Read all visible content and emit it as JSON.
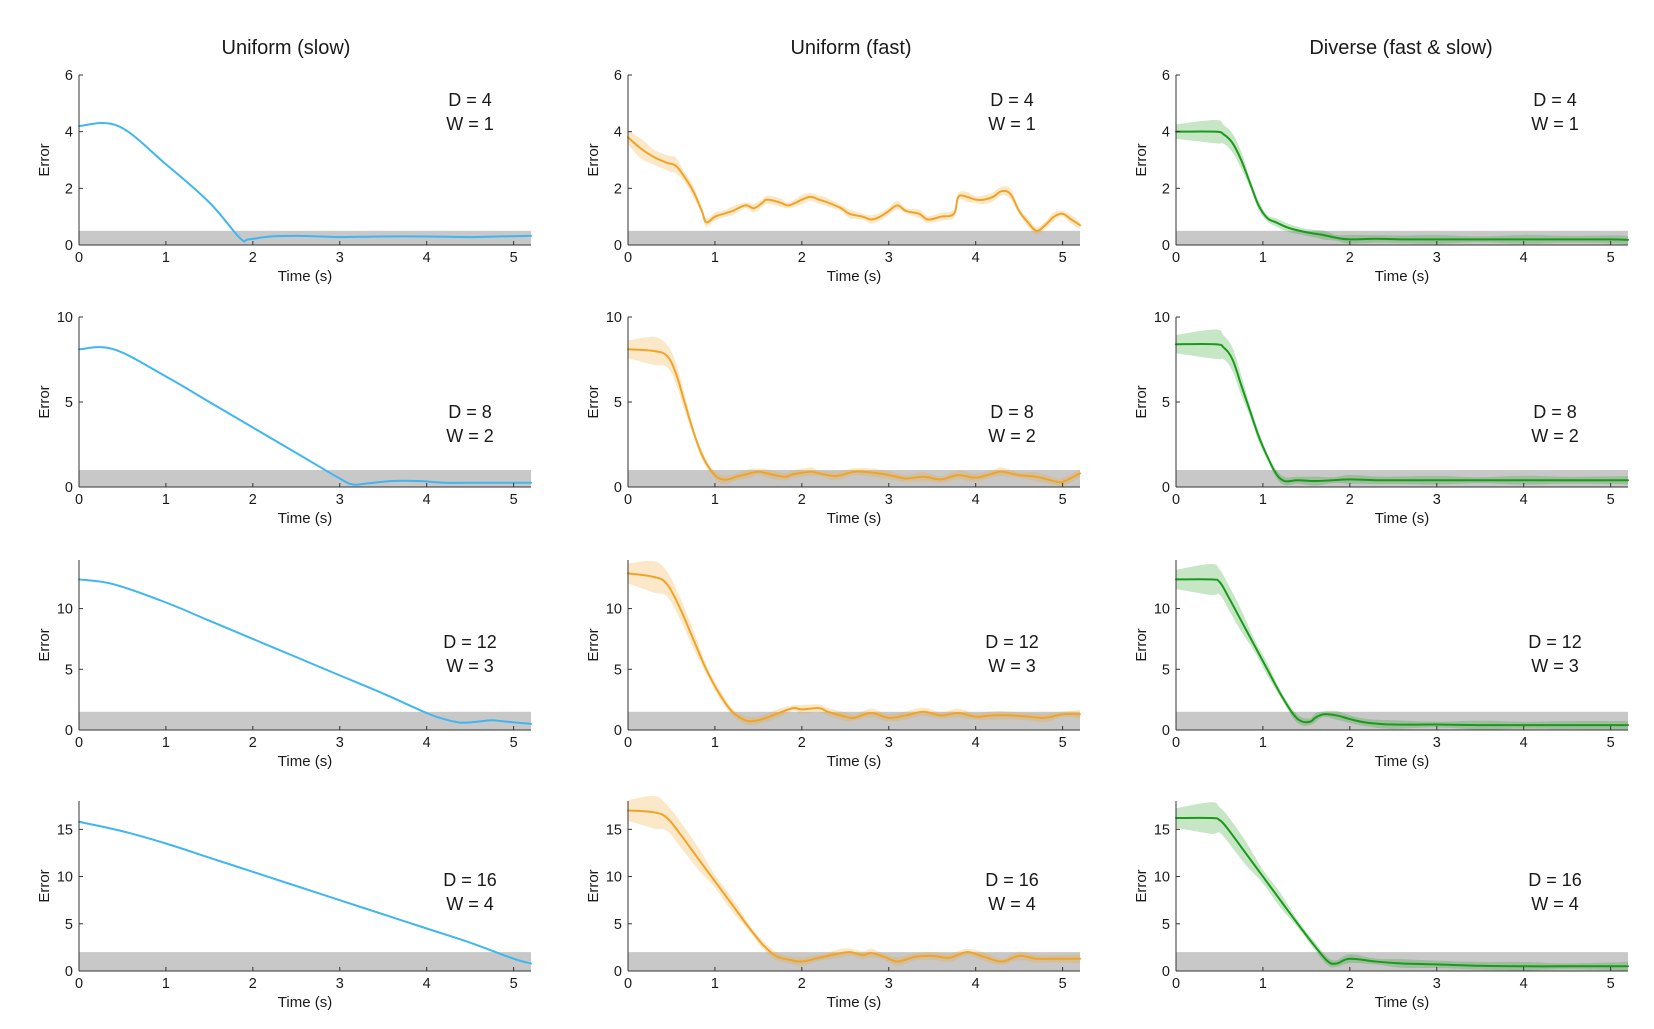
{
  "figure": {
    "column_titles": [
      "Uniform (slow)",
      "Uniform (fast)",
      "Diverse (fast & slow)"
    ],
    "row_annotations": [
      {
        "d": "D = 4",
        "w": "W = 1"
      },
      {
        "d": "D = 8",
        "w": "W = 2"
      },
      {
        "d": "D = 12",
        "w": "W = 3"
      },
      {
        "d": "D = 16",
        "w": "W = 4"
      }
    ],
    "colors": {
      "slow": "#3fb6f0",
      "fast": "#f0a427",
      "diverse": "#1a9a1a",
      "band": "#c8c8c8",
      "axis": "#333333"
    }
  },
  "chart_data": [
    {
      "type": "line",
      "panel": "r1c1",
      "title": "Uniform (slow)",
      "xlabel": "Time (s)",
      "ylabel": "Error",
      "xlim": [
        0,
        5.2
      ],
      "ylim": [
        0,
        6
      ],
      "xticks": [
        0,
        1,
        2,
        3,
        4,
        5
      ],
      "yticks": [
        0,
        2,
        4,
        6
      ],
      "target_band": [
        0,
        0.5
      ],
      "annotation": [
        "D = 4",
        "W = 1"
      ],
      "shaded": false,
      "series": [
        {
          "name": "Uniform (slow)",
          "x": [
            0,
            0.45,
            1.0,
            1.5,
            1.85,
            1.95,
            2.2,
            2.5,
            2.8,
            3.0,
            3.5,
            4.0,
            4.5,
            4.8,
            5.2
          ],
          "y": [
            4.2,
            4.2,
            2.85,
            1.5,
            0.25,
            0.2,
            0.3,
            0.32,
            0.3,
            0.28,
            0.3,
            0.3,
            0.28,
            0.3,
            0.32
          ]
        }
      ]
    },
    {
      "type": "line",
      "panel": "r1c2",
      "title": "Uniform (fast)",
      "xlabel": "Time (s)",
      "ylabel": "Error",
      "xlim": [
        0,
        5.2
      ],
      "ylim": [
        0,
        6
      ],
      "xticks": [
        0,
        1,
        2,
        3,
        4,
        5
      ],
      "yticks": [
        0,
        2,
        4,
        6
      ],
      "target_band": [
        0,
        0.5
      ],
      "annotation": [
        "D = 4",
        "W = 1"
      ],
      "shaded": true,
      "series": [
        {
          "name": "Uniform (fast)",
          "x": [
            0,
            0.15,
            0.3,
            0.45,
            0.55,
            0.65,
            0.75,
            0.85,
            0.9,
            1.0,
            1.1,
            1.2,
            1.35,
            1.45,
            1.55,
            1.6,
            1.75,
            1.85,
            2.0,
            2.1,
            2.2,
            2.3,
            2.45,
            2.55,
            2.7,
            2.8,
            2.9,
            3.0,
            3.1,
            3.2,
            3.35,
            3.45,
            3.6,
            3.75,
            3.8,
            3.9,
            4.0,
            4.1,
            4.2,
            4.3,
            4.4,
            4.5,
            4.6,
            4.7,
            4.8,
            4.9,
            5.0,
            5.1,
            5.2
          ],
          "y": [
            3.8,
            3.4,
            3.1,
            2.9,
            2.8,
            2.4,
            1.9,
            1.2,
            0.8,
            1.0,
            1.1,
            1.2,
            1.4,
            1.3,
            1.5,
            1.6,
            1.5,
            1.4,
            1.6,
            1.7,
            1.6,
            1.5,
            1.3,
            1.1,
            1.0,
            0.9,
            1.0,
            1.2,
            1.4,
            1.2,
            1.1,
            0.9,
            1.0,
            1.1,
            1.7,
            1.7,
            1.6,
            1.6,
            1.7,
            1.9,
            1.8,
            1.2,
            0.8,
            0.5,
            0.7,
            1.0,
            1.1,
            0.9,
            0.7
          ]
        }
      ]
    },
    {
      "type": "line",
      "panel": "r1c3",
      "title": "Diverse (fast & slow)",
      "xlabel": "Time (s)",
      "ylabel": "Error",
      "xlim": [
        0,
        5.2
      ],
      "ylim": [
        0,
        6
      ],
      "xticks": [
        0,
        1,
        2,
        3,
        4,
        5
      ],
      "yticks": [
        0,
        2,
        4,
        6
      ],
      "target_band": [
        0,
        0.5
      ],
      "annotation": [
        "D = 4",
        "W = 1"
      ],
      "shaded": true,
      "series": [
        {
          "name": "Diverse",
          "x": [
            0,
            0.45,
            0.55,
            0.65,
            0.75,
            0.85,
            0.95,
            1.05,
            1.15,
            1.3,
            1.5,
            1.7,
            1.85,
            2.0,
            2.3,
            2.6,
            3.0,
            3.5,
            4.0,
            4.5,
            5.0,
            5.2
          ],
          "y": [
            4.0,
            4.0,
            3.9,
            3.6,
            3.0,
            2.2,
            1.4,
            0.95,
            0.8,
            0.6,
            0.45,
            0.35,
            0.25,
            0.2,
            0.22,
            0.2,
            0.2,
            0.2,
            0.2,
            0.2,
            0.2,
            0.18
          ]
        }
      ]
    },
    {
      "type": "line",
      "panel": "r2c1",
      "title": "Uniform (slow)",
      "xlabel": "Time (s)",
      "ylabel": "Error",
      "xlim": [
        0,
        5.2
      ],
      "ylim": [
        0,
        10
      ],
      "xticks": [
        0,
        1,
        2,
        3,
        4,
        5
      ],
      "yticks": [
        0,
        5,
        10
      ],
      "target_band": [
        0,
        1
      ],
      "annotation": [
        "D = 8",
        "W = 2"
      ],
      "shaded": false,
      "series": [
        {
          "name": "Uniform (slow)",
          "x": [
            0,
            0.4,
            1.0,
            1.5,
            2.0,
            2.5,
            3.0,
            3.15,
            3.3,
            3.6,
            3.9,
            4.2,
            4.5,
            5.2
          ],
          "y": [
            8.1,
            8.1,
            6.5,
            5.0,
            3.5,
            2.0,
            0.5,
            0.15,
            0.2,
            0.35,
            0.35,
            0.25,
            0.25,
            0.25
          ]
        }
      ]
    },
    {
      "type": "line",
      "panel": "r2c2",
      "title": "Uniform (fast)",
      "xlabel": "Time (s)",
      "ylabel": "Error",
      "xlim": [
        0,
        5.2
      ],
      "ylim": [
        0,
        10
      ],
      "xticks": [
        0,
        1,
        2,
        3,
        4,
        5
      ],
      "yticks": [
        0,
        5,
        10
      ],
      "target_band": [
        0,
        1
      ],
      "annotation": [
        "D = 8",
        "W = 2"
      ],
      "shaded": true,
      "series": [
        {
          "name": "Uniform (fast)",
          "x": [
            0,
            0.3,
            0.45,
            0.55,
            0.65,
            0.75,
            0.85,
            0.95,
            1.05,
            1.15,
            1.25,
            1.4,
            1.5,
            1.6,
            1.8,
            1.9,
            2.1,
            2.2,
            2.4,
            2.6,
            2.8,
            3.0,
            3.2,
            3.4,
            3.6,
            3.8,
            4.0,
            4.2,
            4.3,
            4.5,
            4.7,
            4.9,
            5.0,
            5.2
          ],
          "y": [
            8.1,
            8.0,
            7.7,
            6.7,
            5.0,
            3.3,
            1.9,
            1.0,
            0.5,
            0.45,
            0.6,
            0.8,
            0.9,
            0.8,
            0.6,
            0.75,
            0.9,
            0.8,
            0.65,
            0.9,
            0.85,
            0.7,
            0.5,
            0.6,
            0.45,
            0.7,
            0.55,
            0.8,
            0.9,
            0.7,
            0.6,
            0.35,
            0.3,
            0.8
          ]
        }
      ]
    },
    {
      "type": "line",
      "panel": "r2c3",
      "title": "Diverse (fast & slow)",
      "xlabel": "Time (s)",
      "ylabel": "Error",
      "xlim": [
        0,
        5.2
      ],
      "ylim": [
        0,
        10
      ],
      "xticks": [
        0,
        1,
        2,
        3,
        4,
        5
      ],
      "yticks": [
        0,
        5,
        10
      ],
      "target_band": [
        0,
        1
      ],
      "annotation": [
        "D = 8",
        "W = 2"
      ],
      "shaded": true,
      "series": [
        {
          "name": "Diverse",
          "x": [
            0,
            0.45,
            0.55,
            0.65,
            0.75,
            0.85,
            0.95,
            1.05,
            1.15,
            1.25,
            1.4,
            1.6,
            1.8,
            2.0,
            2.3,
            2.6,
            3.0,
            3.5,
            4.0,
            4.5,
            5.2
          ],
          "y": [
            8.4,
            8.4,
            8.2,
            7.5,
            6.0,
            4.5,
            3.0,
            1.8,
            0.8,
            0.35,
            0.4,
            0.35,
            0.4,
            0.45,
            0.4,
            0.4,
            0.4,
            0.4,
            0.4,
            0.4,
            0.4
          ]
        }
      ]
    },
    {
      "type": "line",
      "panel": "r3c1",
      "title": "Uniform (slow)",
      "xlabel": "Time (s)",
      "ylabel": "Error",
      "xlim": [
        0,
        5.2
      ],
      "ylim": [
        0,
        14
      ],
      "xticks": [
        0,
        1,
        2,
        3,
        4,
        5
      ],
      "yticks": [
        0,
        5,
        10
      ],
      "target_band": [
        0,
        1.5
      ],
      "annotation": [
        "D = 12",
        "W = 3"
      ],
      "shaded": false,
      "series": [
        {
          "name": "Uniform (slow)",
          "x": [
            0,
            0.4,
            1.0,
            1.5,
            2.0,
            2.5,
            3.0,
            3.5,
            4.0,
            4.2,
            4.4,
            4.6,
            4.75,
            4.9,
            5.2
          ],
          "y": [
            12.4,
            12.0,
            10.5,
            9.0,
            7.5,
            6.0,
            4.5,
            3.0,
            1.4,
            0.9,
            0.6,
            0.7,
            0.8,
            0.7,
            0.5
          ]
        }
      ]
    },
    {
      "type": "line",
      "panel": "r3c2",
      "title": "Uniform (fast)",
      "xlabel": "Time (s)",
      "ylabel": "Error",
      "xlim": [
        0,
        5.2
      ],
      "ylim": [
        0,
        14
      ],
      "xticks": [
        0,
        1,
        2,
        3,
        4,
        5
      ],
      "yticks": [
        0,
        5,
        10
      ],
      "target_band": [
        0,
        1.5
      ],
      "annotation": [
        "D = 12",
        "W = 3"
      ],
      "shaded": true,
      "series": [
        {
          "name": "Uniform (fast)",
          "x": [
            0,
            0.3,
            0.45,
            0.6,
            0.75,
            0.9,
            1.05,
            1.2,
            1.35,
            1.45,
            1.55,
            1.7,
            1.9,
            2.0,
            2.2,
            2.3,
            2.5,
            2.6,
            2.8,
            3.0,
            3.2,
            3.4,
            3.6,
            3.8,
            4.0,
            4.2,
            4.4,
            4.6,
            4.8,
            5.0,
            5.2
          ],
          "y": [
            12.9,
            12.6,
            12.0,
            10.0,
            7.5,
            5.0,
            3.0,
            1.5,
            0.8,
            0.75,
            0.9,
            1.3,
            1.8,
            1.7,
            1.8,
            1.5,
            1.1,
            1.0,
            1.4,
            1.0,
            1.2,
            1.5,
            1.2,
            1.4,
            1.1,
            1.2,
            1.2,
            1.1,
            1.0,
            1.3,
            1.3
          ]
        }
      ]
    },
    {
      "type": "line",
      "panel": "r3c3",
      "title": "Diverse (fast & slow)",
      "xlabel": "Time (s)",
      "ylabel": "Error",
      "xlim": [
        0,
        5.2
      ],
      "ylim": [
        0,
        14
      ],
      "xticks": [
        0,
        1,
        2,
        3,
        4,
        5
      ],
      "yticks": [
        0,
        5,
        10
      ],
      "target_band": [
        0,
        1.5
      ],
      "annotation": [
        "D = 12",
        "W = 3"
      ],
      "shaded": true,
      "series": [
        {
          "name": "Diverse",
          "x": [
            0,
            0.4,
            0.5,
            0.6,
            0.75,
            0.9,
            1.05,
            1.2,
            1.35,
            1.45,
            1.55,
            1.6,
            1.7,
            1.85,
            2.0,
            2.2,
            2.5,
            3.0,
            3.5,
            4.0,
            4.5,
            5.2
          ],
          "y": [
            12.4,
            12.4,
            12.2,
            11.0,
            9.0,
            7.0,
            5.0,
            3.0,
            1.3,
            0.7,
            0.7,
            1.0,
            1.3,
            1.2,
            0.9,
            0.6,
            0.45,
            0.45,
            0.4,
            0.4,
            0.4,
            0.4
          ]
        }
      ]
    },
    {
      "type": "line",
      "panel": "r4c1",
      "title": "Uniform (slow)",
      "xlabel": "Time (s)",
      "ylabel": "Error",
      "xlim": [
        0,
        5.2
      ],
      "ylim": [
        0,
        18
      ],
      "xticks": [
        0,
        1,
        2,
        3,
        4,
        5
      ],
      "yticks": [
        0,
        5,
        10,
        15
      ],
      "target_band": [
        0,
        2
      ],
      "annotation": [
        "D = 16",
        "W = 4"
      ],
      "shaded": false,
      "series": [
        {
          "name": "Uniform (slow)",
          "x": [
            0,
            0.5,
            1.0,
            1.5,
            2.0,
            2.5,
            3.0,
            3.5,
            4.0,
            4.5,
            5.0,
            5.2
          ],
          "y": [
            15.8,
            14.8,
            13.5,
            12.0,
            10.5,
            9.0,
            7.5,
            6.0,
            4.5,
            3.0,
            1.3,
            0.8
          ]
        }
      ]
    },
    {
      "type": "line",
      "panel": "r4c2",
      "title": "Uniform (fast)",
      "xlabel": "Time (s)",
      "ylabel": "Error",
      "xlim": [
        0,
        5.2
      ],
      "ylim": [
        0,
        18
      ],
      "xticks": [
        0,
        1,
        2,
        3,
        4,
        5
      ],
      "yticks": [
        0,
        5,
        10,
        15
      ],
      "target_band": [
        0,
        2
      ],
      "annotation": [
        "D = 16",
        "W = 4"
      ],
      "shaded": true,
      "series": [
        {
          "name": "Uniform (fast)",
          "x": [
            0,
            0.3,
            0.45,
            0.6,
            0.8,
            1.0,
            1.2,
            1.4,
            1.55,
            1.7,
            1.85,
            2.0,
            2.2,
            2.4,
            2.55,
            2.7,
            2.8,
            2.95,
            3.1,
            3.3,
            3.5,
            3.7,
            3.9,
            4.1,
            4.3,
            4.5,
            4.7,
            4.9,
            5.2
          ],
          "y": [
            17.0,
            16.8,
            16.2,
            14.5,
            12.0,
            9.5,
            7.0,
            4.5,
            2.8,
            1.6,
            1.2,
            1.0,
            1.4,
            1.8,
            2.0,
            1.7,
            1.9,
            1.5,
            1.0,
            1.5,
            1.6,
            1.4,
            2.0,
            1.5,
            1.0,
            1.6,
            1.3,
            1.3,
            1.3
          ]
        }
      ]
    },
    {
      "type": "line",
      "panel": "r4c3",
      "title": "Diverse (fast & slow)",
      "xlabel": "Time (s)",
      "ylabel": "Error",
      "xlim": [
        0,
        5.2
      ],
      "ylim": [
        0,
        18
      ],
      "xticks": [
        0,
        1,
        2,
        3,
        4,
        5
      ],
      "yticks": [
        0,
        5,
        10,
        15
      ],
      "target_band": [
        0,
        2
      ],
      "annotation": [
        "D = 16",
        "W = 4"
      ],
      "shaded": true,
      "series": [
        {
          "name": "Diverse",
          "x": [
            0,
            0.4,
            0.5,
            0.6,
            0.8,
            1.0,
            1.2,
            1.4,
            1.6,
            1.75,
            1.85,
            2.0,
            2.3,
            2.6,
            3.0,
            3.5,
            4.0,
            4.5,
            5.2
          ],
          "y": [
            16.2,
            16.2,
            16.0,
            15.0,
            12.5,
            10.0,
            7.5,
            5.0,
            2.6,
            1.0,
            0.8,
            1.3,
            1.0,
            0.8,
            0.7,
            0.55,
            0.5,
            0.5,
            0.5
          ]
        }
      ]
    }
  ]
}
